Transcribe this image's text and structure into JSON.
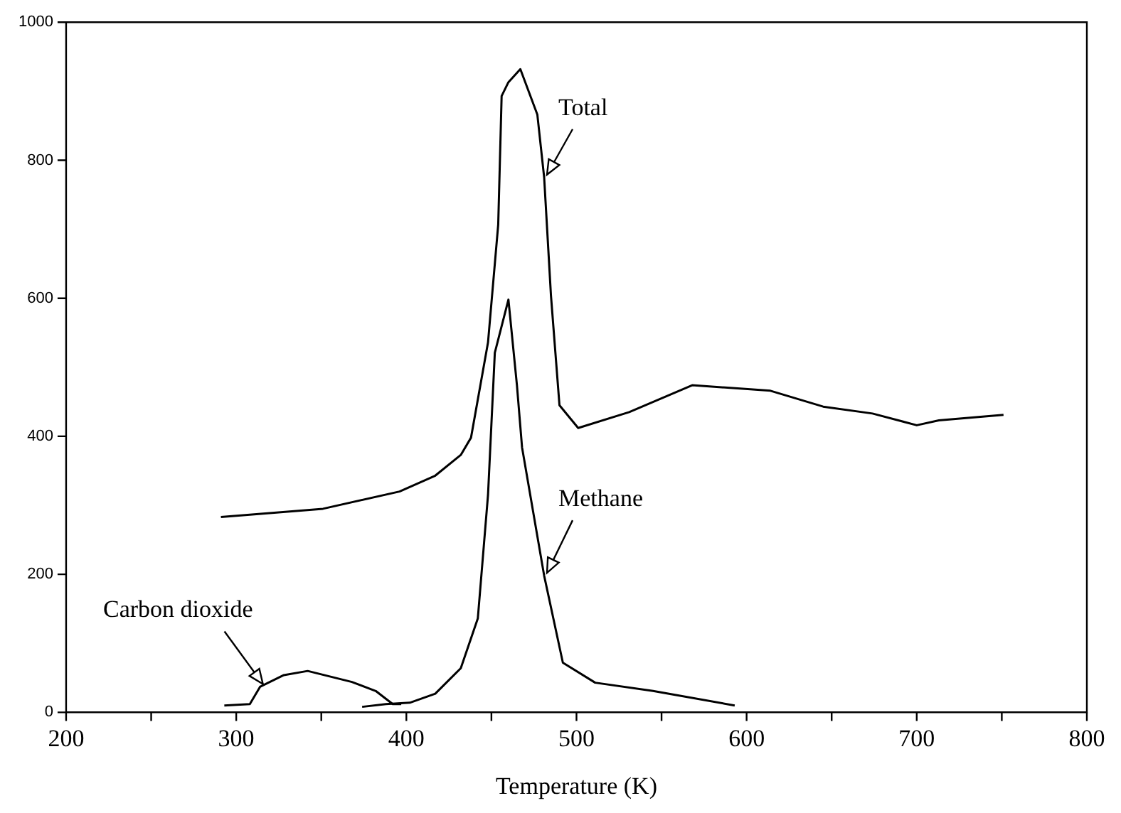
{
  "chart_data": {
    "type": "line",
    "xlabel": "Temperature (K)",
    "series": [
      {
        "name": "Total",
        "color": "#000000",
        "x": [
          291,
          351,
          396,
          417,
          432,
          438,
          448,
          454,
          456,
          460,
          467,
          477,
          481,
          485,
          490,
          501,
          531,
          568,
          614,
          645,
          674,
          700,
          713,
          751
        ],
        "values": [
          283,
          295,
          320,
          343,
          373,
          398,
          536,
          707,
          893,
          913,
          932,
          866,
          775,
          604,
          445,
          412,
          435,
          474,
          466,
          443,
          433,
          416,
          423,
          431
        ]
      },
      {
        "name": "Methane",
        "color": "#000000",
        "x": [
          374,
          388,
          402,
          417,
          432,
          442,
          448,
          452,
          460,
          465,
          468,
          481,
          492,
          511,
          545,
          593
        ],
        "values": [
          8,
          12,
          14,
          27,
          64,
          136,
          315,
          521,
          598,
          474,
          384,
          198,
          72,
          43,
          31,
          10
        ]
      },
      {
        "name": "Carbon dioxide",
        "color": "#000000",
        "x": [
          293,
          308,
          314,
          328,
          342,
          368,
          382,
          392,
          397
        ],
        "values": [
          10,
          12,
          37,
          54,
          60,
          44,
          31,
          12,
          12
        ]
      }
    ],
    "xlim": [
      200,
      800
    ],
    "xticks": [
      200,
      {
        "value": 250,
        "label": null
      },
      300,
      {
        "value": 350,
        "label": null
      },
      400,
      {
        "value": 450,
        "label": null
      },
      500,
      {
        "value": 550,
        "label": null
      },
      600,
      {
        "value": 650,
        "label": null
      },
      700,
      {
        "value": 750,
        "label": null
      },
      800
    ],
    "ylim": [
      0,
      1000
    ],
    "yticks": [
      0,
      200,
      400,
      600,
      800,
      1000
    ],
    "grid": false,
    "legend": false,
    "marker": "none",
    "line_style": "solid"
  }
}
